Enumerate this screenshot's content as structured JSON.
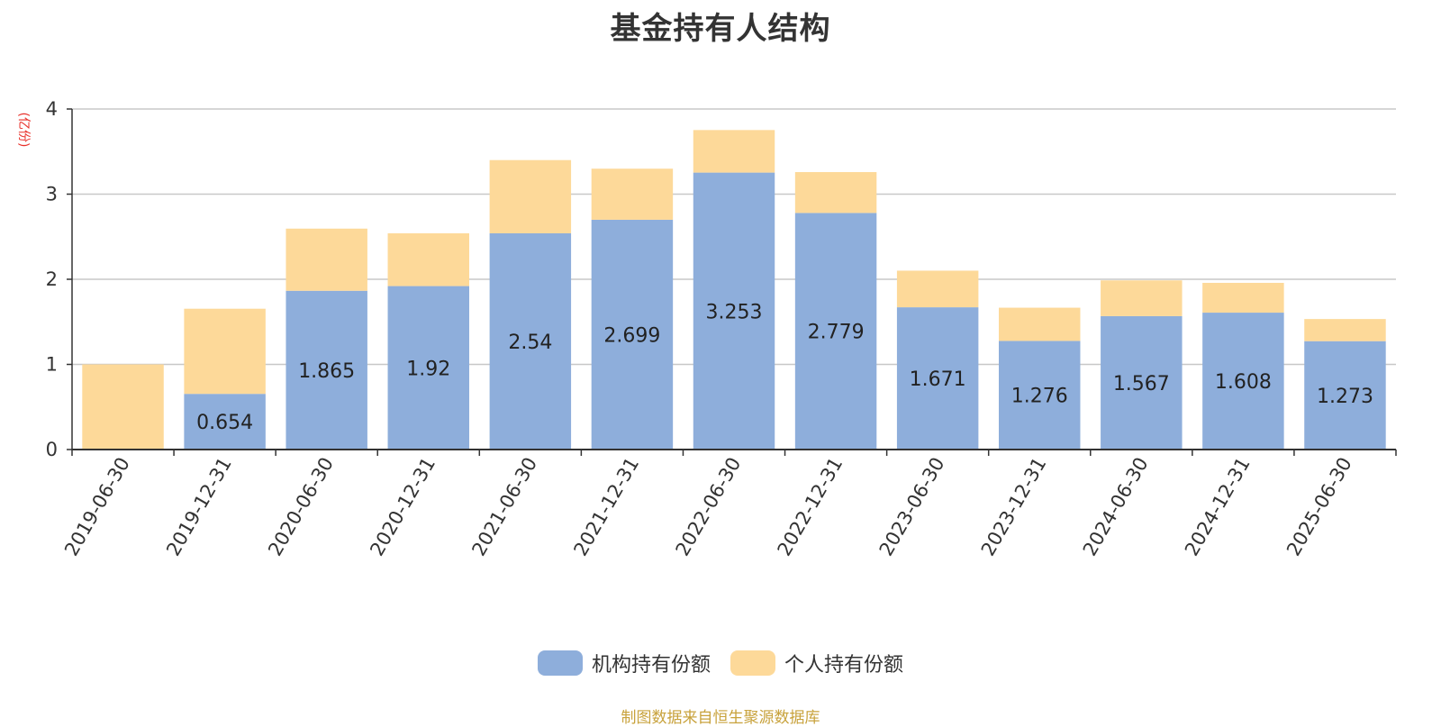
{
  "chart_data": {
    "type": "bar",
    "stacked": true,
    "title": "基金持有人结构",
    "ylabel": "(亿份)",
    "ylim": [
      0,
      4
    ],
    "yticks": [
      0,
      1,
      2,
      3,
      4
    ],
    "grid": true,
    "legend_position": "bottom",
    "categories": [
      "2019-06-30",
      "2019-12-31",
      "2020-06-30",
      "2020-12-31",
      "2021-06-30",
      "2021-12-31",
      "2022-06-30",
      "2022-12-31",
      "2023-06-30",
      "2023-12-31",
      "2024-06-30",
      "2024-12-31",
      "2025-06-30"
    ],
    "series": [
      {
        "name": "机构持有份额",
        "color": "#8eaedb",
        "values": [
          0,
          0.654,
          1.865,
          1.92,
          2.54,
          2.699,
          3.253,
          2.779,
          1.671,
          1.276,
          1.567,
          1.608,
          1.273
        ],
        "labels": [
          "",
          "0.654",
          "1.865",
          "1.92",
          "2.54",
          "2.699",
          "3.253",
          "2.779",
          "1.671",
          "1.276",
          "1.567",
          "1.608",
          "1.273"
        ]
      },
      {
        "name": "个人持有份额",
        "color": "#fdd999",
        "values": [
          1.0,
          1.0,
          0.73,
          0.62,
          0.86,
          0.6,
          0.5,
          0.48,
          0.43,
          0.39,
          0.42,
          0.35,
          0.26
        ]
      }
    ]
  },
  "source_note": "制图数据来自恒生聚源数据库",
  "colors": {
    "axis": "#333333",
    "grid": "#c8c8c8",
    "ylabel": "#e8302a",
    "text": "#333333"
  }
}
